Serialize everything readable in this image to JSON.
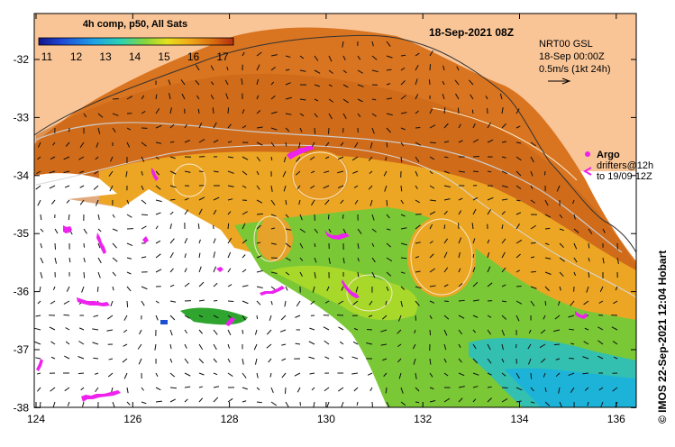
{
  "product": "4h comp, p50, All Sats",
  "timestamp": "18-Sep-2021 08Z",
  "colorbar": {
    "min": 11,
    "max": 17,
    "ticks": [
      "11",
      "12",
      "13",
      "14",
      "15",
      "16",
      "17"
    ]
  },
  "currents": {
    "line1": "NRT00 GSL",
    "line2": "18-Sep 00:00Z",
    "line3": "0.5m/s (1kt 24h)"
  },
  "argo": {
    "label": "Argo",
    "line2": "drifters@12h",
    "line3": "to 19/09 12Z"
  },
  "credit": "© IMOS 22-Sep-2021 12:04 Hobart",
  "lon_ticks": [
    "124",
    "126",
    "128",
    "130",
    "132",
    "134",
    "136"
  ],
  "lat_ticks": [
    "-32",
    "-33",
    "-34",
    "-35",
    "-36",
    "-37",
    "-38"
  ],
  "colors": {
    "land": "#f9c597",
    "warm": "#d96a10",
    "mid": "#f0a818",
    "cool": "#66cc33",
    "cold": "#19b8d6",
    "argo": "#ee22ee"
  }
}
